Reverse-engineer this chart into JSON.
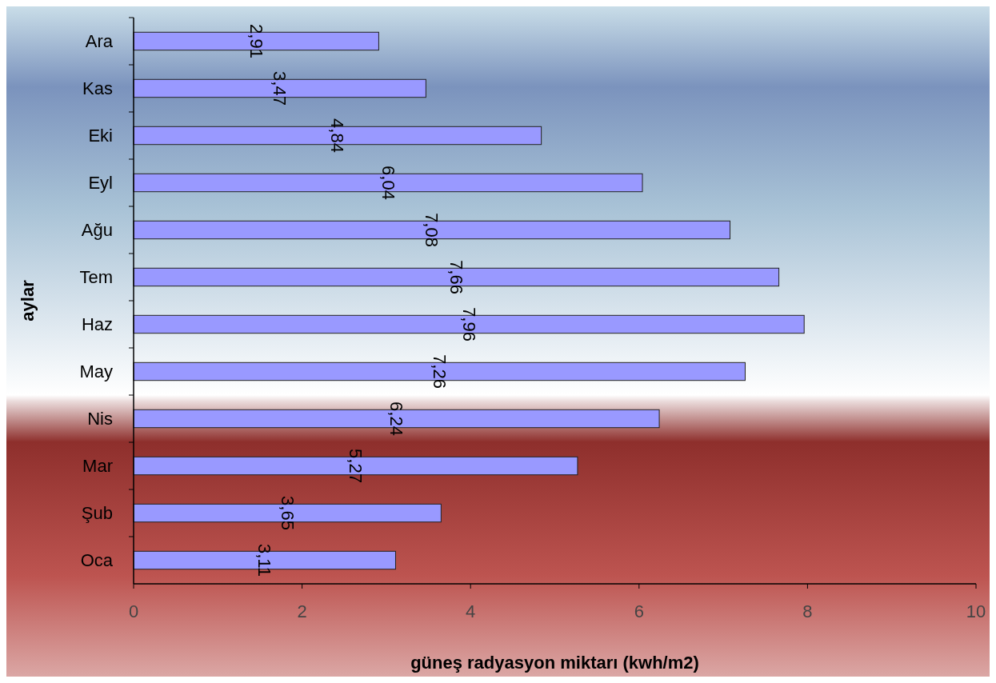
{
  "chart_data": {
    "type": "bar",
    "orientation": "horizontal",
    "xlabel": "güneş radyasyon miktarı (kwh/m2)",
    "ylabel": "aylar",
    "categories": [
      "Ara",
      "Kas",
      "Eki",
      "Eyl",
      "Ağu",
      "Tem",
      "Haz",
      "May",
      "Nis",
      "Mar",
      "Şub",
      "Oca"
    ],
    "values": [
      2.91,
      3.47,
      4.84,
      6.04,
      7.08,
      7.66,
      7.96,
      7.26,
      6.24,
      5.27,
      3.65,
      3.11
    ],
    "value_labels": [
      "2,91",
      "3,47",
      "4,84",
      "6,04",
      "7,08",
      "7,66",
      "7,96",
      "7,26",
      "6,24",
      "5,27",
      "3,65",
      "3,11"
    ],
    "color": "#9999ff",
    "xlim": [
      0,
      10
    ],
    "xticks": [
      0,
      2,
      4,
      6,
      8,
      10
    ],
    "grid": false
  }
}
